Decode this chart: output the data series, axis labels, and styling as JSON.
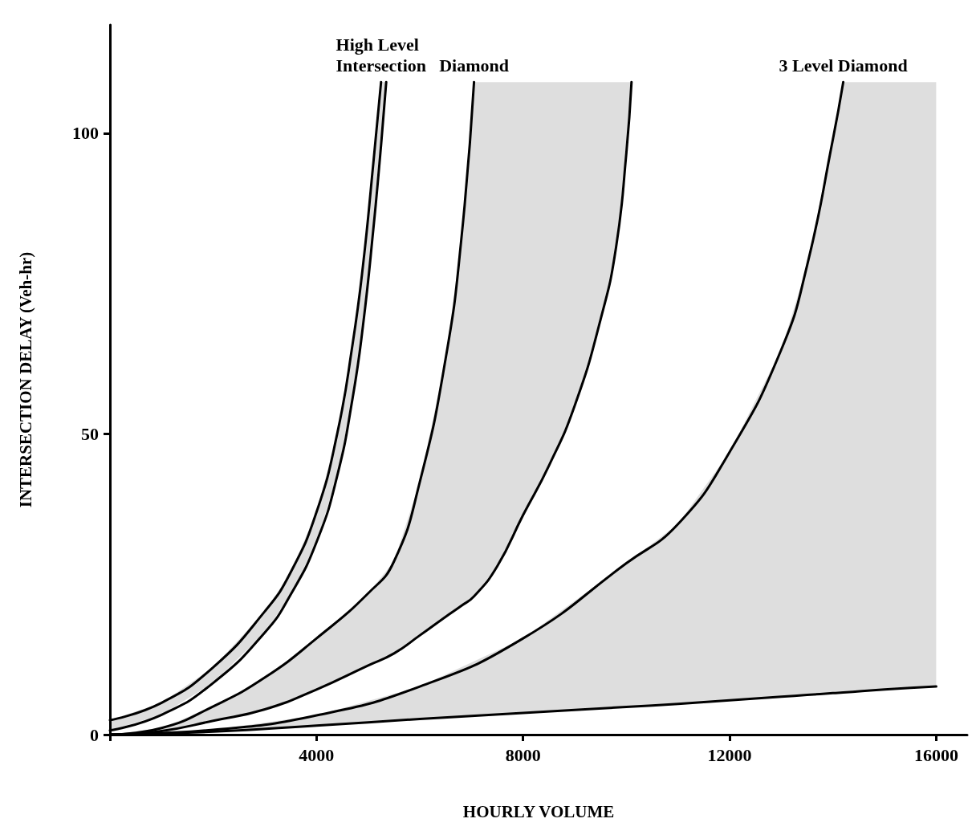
{
  "chart_data": {
    "type": "line",
    "xlabel": "HOURLY VOLUME",
    "ylabel": "INTERSECTION DELAY (Veh-hr)",
    "xlim": [
      0,
      16600
    ],
    "xticks": [
      {
        "value": 0,
        "label": null
      },
      4000,
      8000,
      12000,
      16000
    ],
    "ylim": [
      0,
      118
    ],
    "yticks": [
      0,
      50,
      100
    ],
    "grid": false,
    "marker": "none",
    "line_style": "solid",
    "series": [
      {
        "name": "High Level\nIntersection",
        "color": "#000000",
        "x": [
          0,
          1000,
          2000,
          3000,
          3500,
          4000,
          4400,
          4700,
          4900,
          5100,
          5250
        ],
        "values": [
          2.4,
          5.3,
          11.2,
          20.5,
          27,
          37,
          50,
          65,
          78,
          95,
          108.5
        ]
      },
      {
        "color": "#000000",
        "x": [
          0,
          1000,
          2000,
          3000,
          3500,
          4000,
          4400,
          4700,
          4900,
          5100,
          5250,
          5350
        ],
        "values": [
          0.7,
          3.3,
          8.6,
          17,
          23.3,
          32,
          43,
          56,
          68,
          84,
          98,
          108.5
        ],
        "lower": [
          0.7,
          3.3,
          8.6,
          17,
          23.3,
          32,
          43,
          56,
          68,
          84,
          98,
          108.5
        ],
        "upper": [
          2.4,
          5.3,
          11.2,
          20.5,
          27,
          37,
          50,
          65,
          78,
          95,
          108.5,
          108.5
        ]
      },
      {
        "name": "Diamond",
        "color": "#000000",
        "x": [
          0,
          1000,
          2000,
          3000,
          4000,
          5000,
          5500,
          6000,
          6500,
          6800,
          7050
        ],
        "values": [
          0,
          1.1,
          4.7,
          9.5,
          16,
          23.5,
          28.8,
          42,
          62.5,
          82,
          108.5
        ]
      },
      {
        "color": "#000000",
        "x": [
          0,
          1000,
          2000,
          3000,
          4000,
          5000,
          5500,
          6000,
          6500,
          6800,
          7050,
          7500,
          8000,
          8500,
          9000,
          9500,
          9800,
          10000,
          10100
        ],
        "values": [
          0,
          0.6,
          2.3,
          4.2,
          7.5,
          11.5,
          13.5,
          16.5,
          19.6,
          21.4,
          23,
          28,
          36.5,
          44.7,
          54.7,
          69,
          81,
          96.7,
          108.5
        ],
        "lower": [
          0,
          0.6,
          2.3,
          4.2,
          7.5,
          11.5,
          13.5,
          16.5,
          19.6,
          21.4,
          23,
          28,
          36.5,
          44.7,
          54.7,
          69,
          81,
          96.7,
          108.5
        ],
        "upper": [
          0,
          1.1,
          4.7,
          9.5,
          16,
          23.5,
          28.8,
          42,
          62.5,
          82,
          108.5,
          108.5,
          108.5,
          108.5,
          108.5,
          108.5,
          108.5,
          108.5,
          108.5
        ]
      },
      {
        "name": "3 Level Diamond",
        "color": "#000000",
        "x": [
          0,
          2000,
          4000,
          6000,
          8000,
          10000,
          11000,
          12000,
          13000,
          13500,
          14000,
          14200
        ],
        "values": [
          0,
          0.8,
          3.2,
          8,
          16,
          28.5,
          35,
          47,
          64,
          78,
          99,
          108.5
        ]
      },
      {
        "color": "#000000",
        "x": [
          0,
          2000,
          4000,
          6000,
          8000,
          10000,
          11000,
          12000,
          13000,
          13500,
          14000,
          14200,
          15000,
          16000
        ],
        "values": [
          0,
          0.5,
          1.5,
          2.6,
          3.6,
          4.6,
          5.1,
          5.7,
          6.3,
          6.6,
          6.9,
          7,
          7.5,
          8
        ],
        "lower": [
          0,
          0.5,
          1.5,
          2.6,
          3.6,
          4.6,
          5.1,
          5.7,
          6.3,
          6.6,
          6.9,
          7,
          7.5,
          8
        ],
        "upper": [
          0,
          0.8,
          3.2,
          8,
          16,
          28.5,
          35,
          47,
          64,
          78,
          99,
          108.5,
          108.5,
          108.5
        ]
      }
    ]
  }
}
